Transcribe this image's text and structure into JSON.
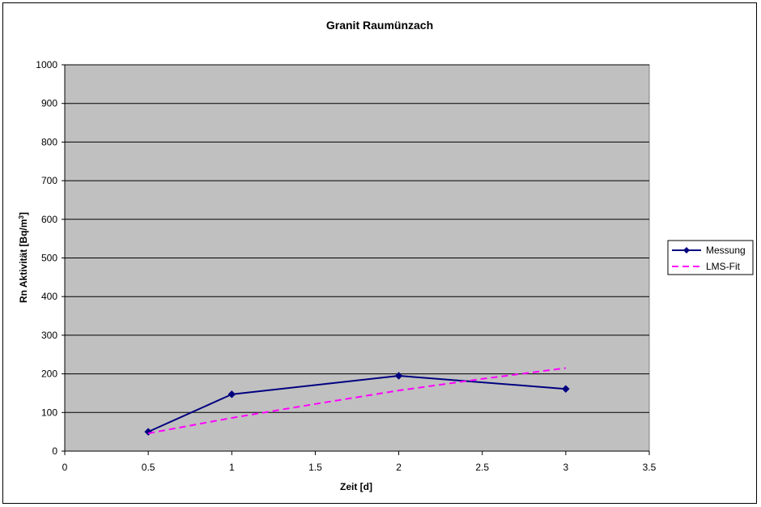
{
  "chart_data": {
    "type": "line",
    "title": "Granit Raumünzach",
    "xlabel": "Zeit [d]",
    "ylabel_main": "Rn Aktivität [Bq/m",
    "ylabel_sup": "3",
    "ylabel_tail": "]",
    "xlim": [
      0,
      3.5
    ],
    "ylim": [
      0,
      1000
    ],
    "x_ticks": [
      "0",
      "0.5",
      "1",
      "1.5",
      "2",
      "2.5",
      "3",
      "3.5"
    ],
    "y_ticks": [
      "0",
      "100",
      "200",
      "300",
      "400",
      "500",
      "600",
      "700",
      "800",
      "900",
      "1000"
    ],
    "grid": "horizontal",
    "legend_position": "right",
    "plot_background": "#c0c0c0",
    "series": [
      {
        "name": "Messung",
        "color": "#000080",
        "style": "solid",
        "marker": "diamond",
        "x": [
          0.5,
          1,
          2,
          3
        ],
        "y": [
          50,
          147,
          195,
          161
        ]
      },
      {
        "name": "LMS-Fit",
        "color": "#ff00ff",
        "style": "dashed",
        "marker": "none",
        "x": [
          0.5,
          1,
          1.5,
          2,
          2.5,
          3
        ],
        "y": [
          46,
          86,
          122,
          157,
          187,
          215
        ]
      }
    ]
  }
}
